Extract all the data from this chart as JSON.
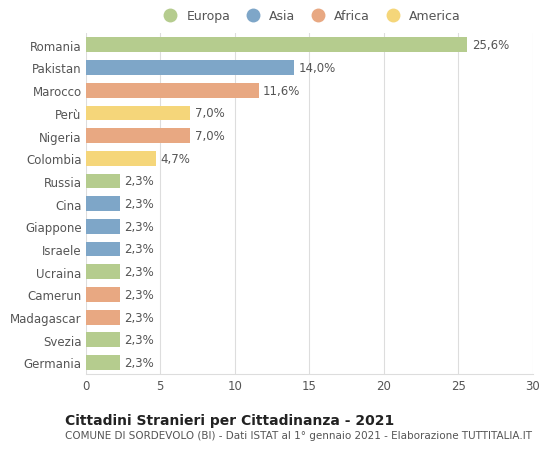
{
  "countries": [
    "Romania",
    "Pakistan",
    "Marocco",
    "Perù",
    "Nigeria",
    "Colombia",
    "Russia",
    "Cina",
    "Giappone",
    "Israele",
    "Ucraina",
    "Camerun",
    "Madagascar",
    "Svezia",
    "Germania"
  ],
  "values": [
    25.6,
    14.0,
    11.6,
    7.0,
    7.0,
    4.7,
    2.3,
    2.3,
    2.3,
    2.3,
    2.3,
    2.3,
    2.3,
    2.3,
    2.3
  ],
  "labels": [
    "25,6%",
    "14,0%",
    "11,6%",
    "7,0%",
    "7,0%",
    "4,7%",
    "2,3%",
    "2,3%",
    "2,3%",
    "2,3%",
    "2,3%",
    "2,3%",
    "2,3%",
    "2,3%",
    "2,3%"
  ],
  "continents": [
    "Europa",
    "Asia",
    "Africa",
    "America",
    "Africa",
    "America",
    "Europa",
    "Asia",
    "Asia",
    "Asia",
    "Europa",
    "Africa",
    "Africa",
    "Europa",
    "Europa"
  ],
  "colors": {
    "Europa": "#b5cc8e",
    "Asia": "#7ea6c8",
    "Africa": "#e8a882",
    "America": "#f5d67a"
  },
  "legend_order": [
    "Europa",
    "Asia",
    "Africa",
    "America"
  ],
  "xlim": [
    0,
    30
  ],
  "xticks": [
    0,
    5,
    10,
    15,
    20,
    25,
    30
  ],
  "title": "Cittadini Stranieri per Cittadinanza - 2021",
  "subtitle": "COMUNE DI SORDEVOLO (BI) - Dati ISTAT al 1° gennaio 2021 - Elaborazione TUTTITALIA.IT",
  "bg_color": "#ffffff",
  "grid_color": "#dddddd",
  "bar_height": 0.65,
  "label_fontsize": 8.5,
  "ytick_fontsize": 8.5,
  "xtick_fontsize": 8.5,
  "legend_fontsize": 9,
  "title_fontsize": 10,
  "subtitle_fontsize": 7.5
}
